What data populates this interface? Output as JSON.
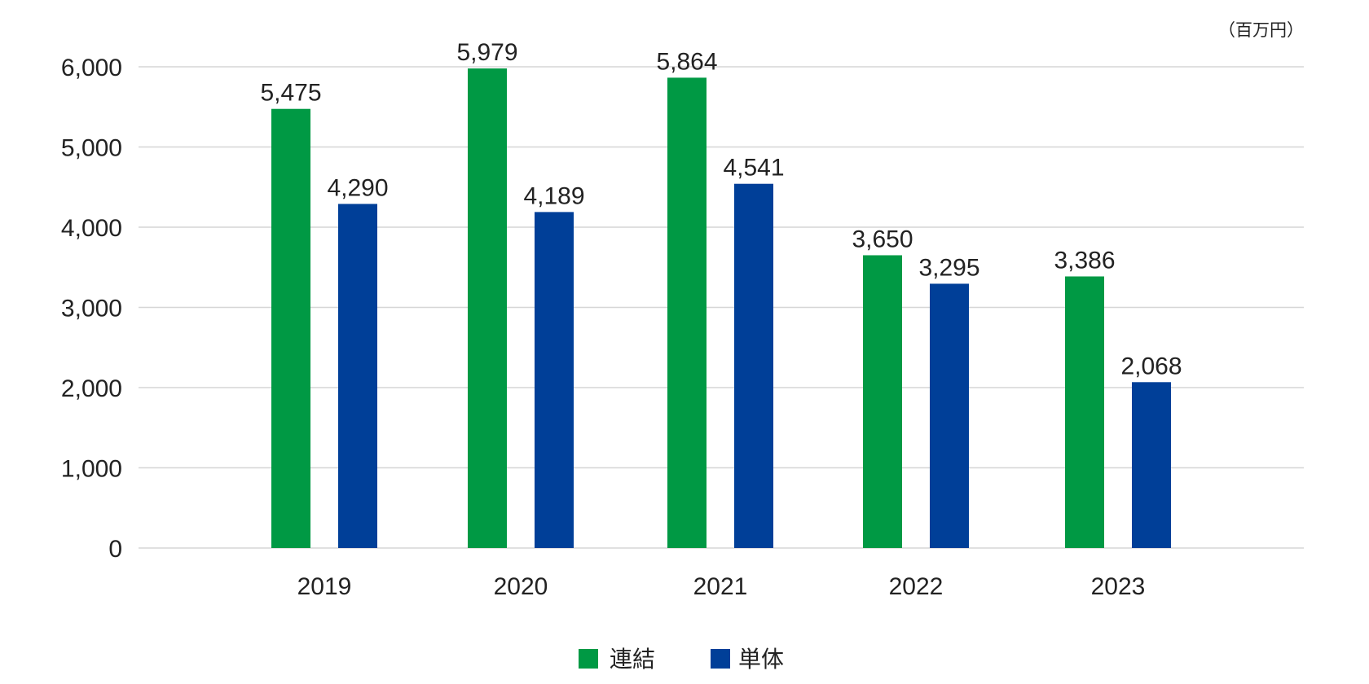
{
  "chart_data": {
    "type": "bar",
    "unit": "（百万円）",
    "categories": [
      "2019",
      "2020",
      "2021",
      "2022",
      "2023"
    ],
    "series": [
      {
        "name": "連結",
        "color": "#009944",
        "values": [
          5475,
          5979,
          5864,
          3650,
          3386
        ]
      },
      {
        "name": "単体",
        "color": "#003f98",
        "values": [
          4290,
          4189,
          4541,
          3295,
          2068
        ]
      }
    ],
    "data_labels": [
      [
        "5,475",
        "5,979",
        "5,864",
        "3,650",
        "3,386"
      ],
      [
        "4,290",
        "4,189",
        "4,541",
        "3,295",
        "2,068"
      ]
    ],
    "ylim": [
      0,
      6000
    ],
    "yticks": [
      0,
      1000,
      2000,
      3000,
      4000,
      5000,
      6000
    ],
    "ytick_labels": [
      "0",
      "1,000",
      "2,000",
      "3,000",
      "4,000",
      "5,000",
      "6,000"
    ],
    "grid": true,
    "legend_position": "bottom-center"
  }
}
